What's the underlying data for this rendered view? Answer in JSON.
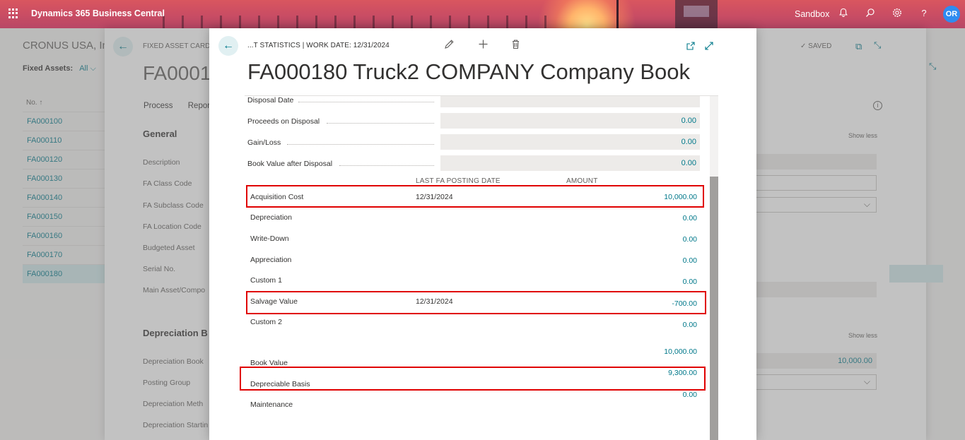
{
  "topbar": {
    "app_name": "Dynamics 365 Business Central",
    "environment": "Sandbox",
    "avatar_initials": "OR",
    "icons": [
      "app-launcher-icon",
      "bell-icon",
      "search-icon",
      "gear-icon",
      "help-icon"
    ]
  },
  "list_page": {
    "company": "CRONUS USA, In",
    "filter_label": "Fixed Assets:",
    "filter_value": "All",
    "column_header": "No. ↑",
    "items": [
      "FA000100",
      "FA000110",
      "FA000120",
      "FA000130",
      "FA000140",
      "FA000150",
      "FA000160",
      "FA000170",
      "FA000180"
    ],
    "selected_item": "FA000180"
  },
  "card_page": {
    "breadcrumb": "FIXED ASSET CARD",
    "title": "FA0001",
    "actions": [
      "Process",
      "Report"
    ],
    "status": "SAVED",
    "general": {
      "section_title": "General",
      "show_less": "Show less",
      "fields": [
        "Description",
        "FA Class Code",
        "FA Subclass Code",
        "FA Location Code",
        "Budgeted Asset",
        "Serial No.",
        "Main Asset/Compo"
      ]
    },
    "depreciation": {
      "section_title": "Depreciation B",
      "show_less": "Show less",
      "fields": [
        "Depreciation Book",
        "Posting Group",
        "Depreciation Meth",
        "Depreciation Startin"
      ],
      "book_value": "10,000.00"
    }
  },
  "modal": {
    "breadcrumb": "...T STATISTICS | WORK DATE: 12/31/2024",
    "title": "FA000180 Truck2 COMPANY Company Book",
    "disposal": [
      {
        "label": "Disposal Date",
        "value": ""
      },
      {
        "label": "Proceeds on Disposal",
        "value": "0.00"
      },
      {
        "label": "Gain/Loss",
        "value": "0.00"
      },
      {
        "label": "Book Value after Disposal",
        "value": "0.00"
      }
    ],
    "columns": {
      "date": "LAST FA POSTING DATE",
      "amount": "AMOUNT"
    },
    "entries": [
      {
        "label": "Acquisition Cost",
        "date": "12/31/2024",
        "amount": "10,000.00"
      },
      {
        "label": "Depreciation",
        "date": "",
        "amount": "0.00"
      },
      {
        "label": "Write-Down",
        "date": "",
        "amount": "0.00"
      },
      {
        "label": "Appreciation",
        "date": "",
        "amount": "0.00"
      },
      {
        "label": "Custom 1",
        "date": "",
        "amount": "0.00"
      },
      {
        "label": "Salvage Value",
        "date": "12/31/2024",
        "amount": "-700.00"
      },
      {
        "label": "Custom 2",
        "date": "",
        "amount": "0.00"
      }
    ],
    "book_value": {
      "label": "Book Value",
      "amount": "10,000.00"
    },
    "depreciable_basis": {
      "label": "Depreciable Basis",
      "amount": "9,300.00"
    },
    "maintenance": {
      "label": "Maintenance",
      "amount": "0.00"
    }
  }
}
